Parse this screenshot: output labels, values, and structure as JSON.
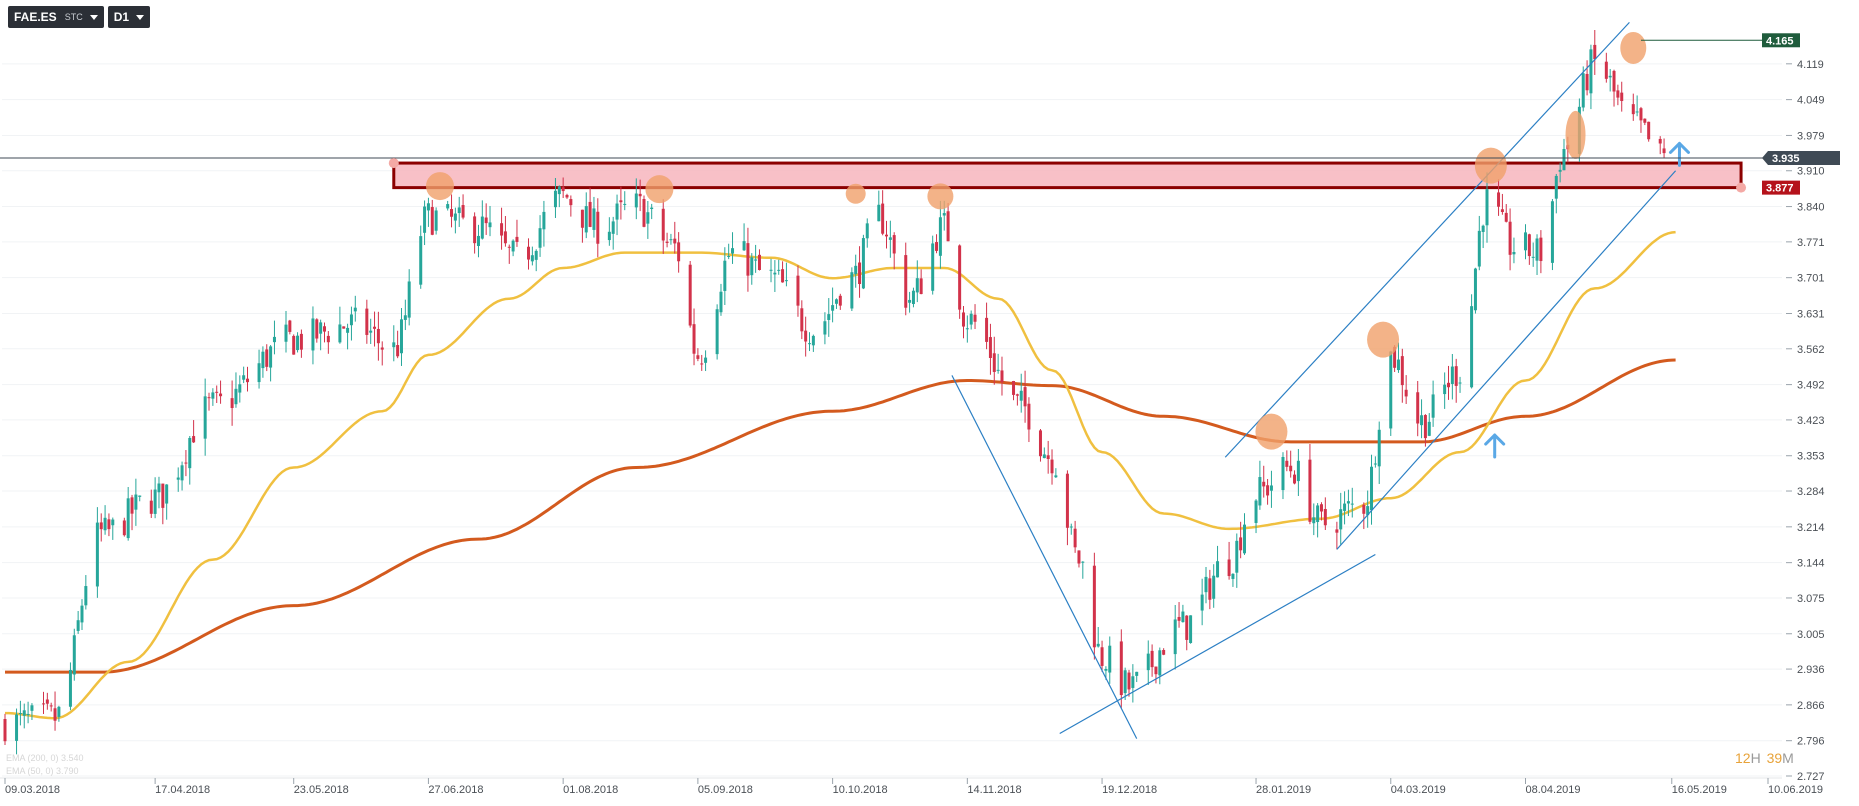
{
  "toolbar": {
    "symbol": "FAE.ES",
    "symbol_type": "STC",
    "interval": "D1"
  },
  "timer": {
    "h": "12",
    "h_unit": "H",
    "m": "39",
    "m_unit": "M"
  },
  "legend": {
    "ema200": "EMA (200, 0) 3.540",
    "ema50": "EMA (50, 0) 3.790"
  },
  "colors": {
    "bull": "#26a69a",
    "bear": "#d2324a",
    "ema50": "#f0c040",
    "ema200": "#d35a1e",
    "trendline": "#2b7fc4",
    "zone_fill": "#f7b5bd",
    "zone_border": "#8b0000",
    "highlight": "#f0a06a",
    "arrow": "#5aa8e6"
  },
  "chart_data": {
    "type": "candlestick",
    "instrument": "FAE.ES",
    "timeframe": "D1",
    "x_start": "09.03.2018",
    "x_end": "10.06.2019",
    "ylim": [
      2.727,
      4.189
    ],
    "y_ticks": [
      4.119,
      4.049,
      3.979,
      3.91,
      3.84,
      3.771,
      3.701,
      3.631,
      3.562,
      3.492,
      3.423,
      3.353,
      3.284,
      3.214,
      3.144,
      3.075,
      3.005,
      2.936,
      2.866,
      2.796,
      2.727
    ],
    "y_tick_labels": [
      "4.119",
      "4.049",
      "3.979",
      "3.910",
      "3.840",
      "3.771",
      "3.701",
      "3.631",
      "3.562",
      "3.492",
      "3.423",
      "3.353",
      "3.284",
      "3.214",
      "3.144",
      "3.075",
      "3.005",
      "2.936",
      "2.866",
      "2.796",
      "2.727"
    ],
    "x_ticks": [
      {
        "label": "09.03.2018",
        "date": "2018-03-09"
      },
      {
        "label": "17.04.2018",
        "date": "2018-04-17"
      },
      {
        "label": "23.05.2018",
        "date": "2018-05-23"
      },
      {
        "label": "27.06.2018",
        "date": "2018-06-27"
      },
      {
        "label": "01.08.2018",
        "date": "2018-08-01"
      },
      {
        "label": "05.09.2018",
        "date": "2018-09-05"
      },
      {
        "label": "10.10.2018",
        "date": "2018-10-10"
      },
      {
        "label": "14.11.2018",
        "date": "2018-11-14"
      },
      {
        "label": "19.12.2018",
        "date": "2018-12-19"
      },
      {
        "label": "28.01.2019",
        "date": "2019-01-28"
      },
      {
        "label": "04.03.2019",
        "date": "2019-03-04"
      },
      {
        "label": "08.04.2019",
        "date": "2019-04-08"
      },
      {
        "label": "16.05.2019",
        "date": "2019-05-16"
      },
      {
        "label": "10.06.2019",
        "date": "2019-06-10"
      }
    ],
    "price_key": [
      [
        "2018-03-09",
        2.83
      ],
      [
        "2018-03-22",
        2.84
      ],
      [
        "2018-04-03",
        3.2
      ],
      [
        "2018-04-17",
        3.27
      ],
      [
        "2018-05-02",
        3.45
      ],
      [
        "2018-05-23",
        3.58
      ],
      [
        "2018-06-08",
        3.61
      ],
      [
        "2018-06-18",
        3.56
      ],
      [
        "2018-06-27",
        3.82
      ],
      [
        "2018-07-10",
        3.8
      ],
      [
        "2018-07-20",
        3.74
      ],
      [
        "2018-08-01",
        3.86
      ],
      [
        "2018-08-10",
        3.8
      ],
      [
        "2018-08-20",
        3.84
      ],
      [
        "2018-08-30",
        3.76
      ],
      [
        "2018-09-05",
        3.55
      ],
      [
        "2018-09-14",
        3.75
      ],
      [
        "2018-09-24",
        3.7
      ],
      [
        "2018-10-05",
        3.6
      ],
      [
        "2018-10-15",
        3.7
      ],
      [
        "2018-10-22",
        3.82
      ],
      [
        "2018-10-30",
        3.66
      ],
      [
        "2018-11-08",
        3.8
      ],
      [
        "2018-11-14",
        3.62
      ],
      [
        "2018-11-28",
        3.45
      ],
      [
        "2018-12-06",
        3.35
      ],
      [
        "2018-12-13",
        3.15
      ],
      [
        "2018-12-19",
        2.96
      ],
      [
        "2018-12-26",
        2.9
      ],
      [
        "2019-01-09",
        3.02
      ],
      [
        "2019-01-21",
        3.15
      ],
      [
        "2019-01-28",
        3.28
      ],
      [
        "2019-02-06",
        3.33
      ],
      [
        "2019-02-14",
        3.22
      ],
      [
        "2019-02-25",
        3.26
      ],
      [
        "2019-03-04",
        3.55
      ],
      [
        "2019-03-12",
        3.42
      ],
      [
        "2019-03-22",
        3.52
      ],
      [
        "2019-03-29",
        3.85
      ],
      [
        "2019-04-05",
        3.76
      ],
      [
        "2019-04-12",
        3.75
      ],
      [
        "2019-04-18",
        3.95
      ],
      [
        "2019-04-26",
        4.12
      ],
      [
        "2019-05-06",
        4.0
      ],
      [
        "2019-05-14",
        3.935
      ]
    ],
    "ema50_key": [
      [
        "2018-03-09",
        2.85
      ],
      [
        "2018-03-22",
        2.84
      ],
      [
        "2018-04-10",
        2.95
      ],
      [
        "2018-05-02",
        3.15
      ],
      [
        "2018-05-23",
        3.33
      ],
      [
        "2018-06-15",
        3.44
      ],
      [
        "2018-06-27",
        3.55
      ],
      [
        "2018-07-18",
        3.66
      ],
      [
        "2018-08-01",
        3.72
      ],
      [
        "2018-08-17",
        3.75
      ],
      [
        "2018-09-05",
        3.75
      ],
      [
        "2018-09-24",
        3.74
      ],
      [
        "2018-10-10",
        3.7
      ],
      [
        "2018-10-26",
        3.72
      ],
      [
        "2018-11-08",
        3.72
      ],
      [
        "2018-11-22",
        3.66
      ],
      [
        "2018-12-06",
        3.52
      ],
      [
        "2018-12-19",
        3.36
      ],
      [
        "2019-01-04",
        3.24
      ],
      [
        "2019-01-21",
        3.21
      ],
      [
        "2019-02-14",
        3.23
      ],
      [
        "2019-03-04",
        3.27
      ],
      [
        "2019-03-22",
        3.36
      ],
      [
        "2019-04-08",
        3.5
      ],
      [
        "2019-04-26",
        3.68
      ],
      [
        "2019-05-17",
        3.79
      ]
    ],
    "ema200_key": [
      [
        "2018-03-09",
        2.93
      ],
      [
        "2018-04-03",
        2.93
      ],
      [
        "2018-05-23",
        3.06
      ],
      [
        "2018-07-10",
        3.19
      ],
      [
        "2018-08-20",
        3.33
      ],
      [
        "2018-10-10",
        3.44
      ],
      [
        "2018-11-14",
        3.5
      ],
      [
        "2018-12-06",
        3.49
      ],
      [
        "2019-01-04",
        3.43
      ],
      [
        "2019-02-06",
        3.38
      ],
      [
        "2019-03-12",
        3.38
      ],
      [
        "2019-04-08",
        3.43
      ],
      [
        "2019-05-17",
        3.54
      ]
    ],
    "current_price": 3.935,
    "current_price_label": "3.935",
    "resistance_label": "3.877",
    "resistance_zone": [
      3.877,
      3.925
    ],
    "high_level": 4.165,
    "high_label": "4.165",
    "indicators": [
      "EMA (200, 0) 3.540",
      "EMA (50, 0) 3.790"
    ]
  }
}
